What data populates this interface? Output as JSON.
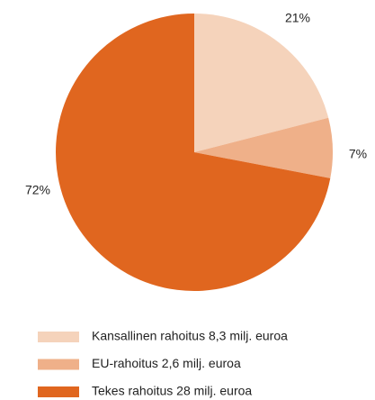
{
  "chart_data": {
    "type": "pie",
    "categories": [
      "Kansallinen rahoitus 8,3 milj. euroa",
      "EU-rahoitus 2,6 milj. euroa",
      "Tekes rahoitus 28 milj. euroa"
    ],
    "values": [
      21,
      7,
      72
    ],
    "value_labels": [
      "21%",
      "7%",
      "72%"
    ],
    "colors": [
      "#f5d3bb",
      "#efb089",
      "#e0661f"
    ],
    "legend": "bottom"
  }
}
